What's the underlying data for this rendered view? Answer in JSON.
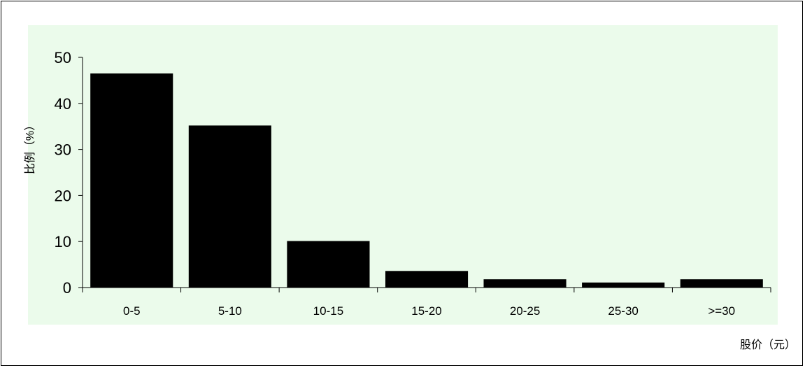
{
  "chart_data": {
    "type": "bar",
    "title": "",
    "xlabel": "股价（元）",
    "ylabel": "比例（%）",
    "categories": [
      "0-5",
      "5-10",
      "10-15",
      "15-20",
      "20-25",
      "25-30",
      ">=30"
    ],
    "values": [
      46.5,
      35.2,
      10.1,
      3.6,
      1.8,
      1.1,
      1.8
    ],
    "yticks": [
      "0",
      "10",
      "20",
      "30",
      "40",
      "50"
    ],
    "ylim": [
      0,
      50
    ],
    "grid": false,
    "legend": "none",
    "colors": {
      "plot_background": "#ebfbeb",
      "bar_fill": "#000000",
      "axis": "#000000"
    }
  }
}
